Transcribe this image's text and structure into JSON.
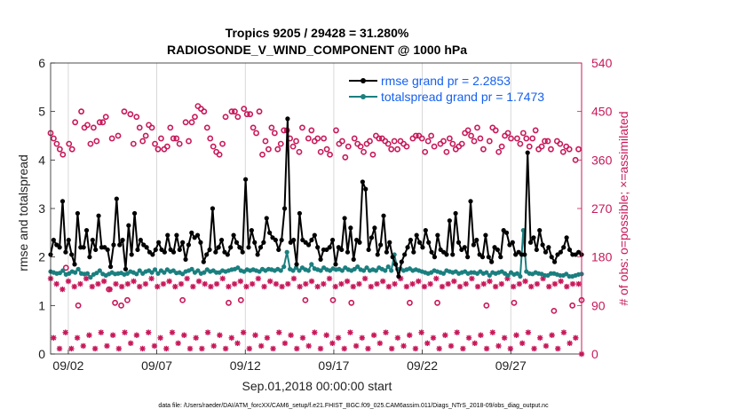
{
  "chart_data": {
    "type": "line",
    "title": "Tropics 9205 / 29428 = 31.280%",
    "subtitle": "RADIOSONDE_V_WIND_COMPONENT @ 1000 hPa",
    "xlabel": "Sep.01,2018 00:00:00 start",
    "ylabel": "rmse and totalspread",
    "ylabel_right": "# of obs: o=possible; ×=assimilated",
    "xlim": [
      0,
      30
    ],
    "ylim": [
      0,
      6
    ],
    "ylim_right": [
      0,
      540
    ],
    "x_ticks": [
      1,
      6,
      11,
      16,
      21,
      26
    ],
    "x_tick_labels": [
      "09/02",
      "09/07",
      "09/12",
      "09/17",
      "09/22",
      "09/27"
    ],
    "y_ticks": [
      "0",
      "1",
      "2",
      "3",
      "4",
      "5",
      "6"
    ],
    "y_ticks_right": [
      "0",
      "90",
      "180",
      "270",
      "360",
      "450",
      "540"
    ],
    "grid": "vertical",
    "legend_position": "top-right",
    "colors": {
      "rmse": "#000000",
      "spread": "#1a7f7f",
      "obs": "#c8185a"
    },
    "footnote": "data file: /Users/raeder/DAI/ATM_forcXX/CAM6_setup/f.e21.FHIST_BGC.f09_025.CAM6assim.011/Diags_NTrS_2018-09/obs_diag_output.nc",
    "series": [
      {
        "name": "rmse",
        "legend": "rmse grand pr = 2.2853",
        "axis": "left",
        "values": [
          2.05,
          2.35,
          2.25,
          2.2,
          3.15,
          2.1,
          2.35,
          2.05,
          1.85,
          2.9,
          2.2,
          2.2,
          2.55,
          2.0,
          2.35,
          2.15,
          2.85,
          2.2,
          2.2,
          2.15,
          1.8,
          2.25,
          3.2,
          2.25,
          2.35,
          1.75,
          2.65,
          2.05,
          2.9,
          2.15,
          2.35,
          2.25,
          2.2,
          2.1,
          2.05,
          2.15,
          2.3,
          2.15,
          2.1,
          2.45,
          2.15,
          2.1,
          2.45,
          2.15,
          2.3,
          1.95,
          2.25,
          2.5,
          2.4,
          2.45,
          2.3,
          1.9,
          2.05,
          2.15,
          3.0,
          2.1,
          2.2,
          2.35,
          2.1,
          2.05,
          2.2,
          2.45,
          2.3,
          2.2,
          2.1,
          3.6,
          2.2,
          2.55,
          2.3,
          2.05,
          2.2,
          2.3,
          2.8,
          2.5,
          2.4,
          2.35,
          2.15,
          2.35,
          3.0,
          4.85,
          2.3,
          2.35,
          1.85,
          2.9,
          2.35,
          2.3,
          2.25,
          2.35,
          2.45,
          2.2,
          1.95,
          2.15,
          2.15,
          2.2,
          2.35,
          1.85,
          2.2,
          2.15,
          2.8,
          2.1,
          2.6,
          1.95,
          2.35,
          2.3,
          3.55,
          3.4,
          2.15,
          2.4,
          2.6,
          2.05,
          2.25,
          2.85,
          2.1,
          2.3,
          2.0,
          1.85,
          1.6,
          1.9,
          2.05,
          2.2,
          2.35,
          2.1,
          2.45,
          2.3,
          2.2,
          2.55,
          2.3,
          2.1,
          2.0,
          2.45,
          2.15,
          2.1,
          2.05,
          2.75,
          2.05,
          2.9,
          2.3,
          2.15,
          2.2,
          2.0,
          3.15,
          2.25,
          2.35,
          2.05,
          2.0,
          2.45,
          2.0,
          1.9,
          2.2,
          2.15,
          2.0,
          2.55,
          2.5,
          2.25,
          2.3,
          2.05,
          2.1,
          2.05,
          2.05,
          4.15,
          2.3,
          2.4,
          2.15,
          2.55,
          2.25,
          2.1,
          2.2,
          2.0,
          1.9,
          2.05,
          2.1,
          2.2,
          2.4,
          2.15,
          2.05,
          2.05,
          2.1,
          2.05
        ]
      },
      {
        "name": "totalspread",
        "legend": "totalspread grand pr = 1.7473",
        "axis": "left",
        "values": [
          1.7,
          1.68,
          1.66,
          1.67,
          1.72,
          1.64,
          1.66,
          1.7,
          1.68,
          1.75,
          1.66,
          1.65,
          1.66,
          1.58,
          1.64,
          1.67,
          1.72,
          1.65,
          1.62,
          1.65,
          1.68,
          1.65,
          1.66,
          1.67,
          1.64,
          1.66,
          1.7,
          1.68,
          1.65,
          1.72,
          1.66,
          1.7,
          1.72,
          1.68,
          1.74,
          1.66,
          1.72,
          1.68,
          1.74,
          1.7,
          1.72,
          1.67,
          1.68,
          1.65,
          1.7,
          1.72,
          1.75,
          1.68,
          1.72,
          1.66,
          1.68,
          1.74,
          1.7,
          1.72,
          1.68,
          1.68,
          1.72,
          1.7,
          1.72,
          1.74,
          1.75,
          1.78,
          1.72,
          1.7,
          1.74,
          1.72,
          1.74,
          1.72,
          1.7,
          1.75,
          1.72,
          1.75,
          1.74,
          1.72,
          1.75,
          1.72,
          1.8,
          2.1,
          1.75,
          1.72,
          1.78,
          1.72,
          1.78,
          1.74,
          1.72,
          1.85,
          1.76,
          1.74,
          1.72,
          1.78,
          1.74,
          1.72,
          1.76,
          1.74,
          1.75,
          1.72,
          1.78,
          1.74,
          1.72,
          1.75,
          1.8,
          1.74,
          1.72,
          1.78,
          1.72,
          1.74,
          1.72,
          1.78,
          1.75,
          1.72,
          1.8,
          1.72,
          2.05,
          1.75,
          1.76,
          1.72,
          1.74,
          1.76,
          1.72,
          1.74,
          1.72,
          1.7,
          1.68,
          1.66,
          1.68,
          1.72,
          1.7,
          1.68,
          1.66,
          1.72,
          1.7,
          1.68,
          1.7,
          1.66,
          1.68,
          1.7,
          1.66,
          1.68,
          1.68,
          1.66,
          1.7,
          1.66,
          1.68,
          1.62,
          1.68,
          1.66,
          1.68,
          1.7,
          1.66,
          1.62,
          1.68,
          1.64,
          1.66,
          1.6,
          2.55,
          1.7,
          1.66,
          1.65,
          1.68,
          1.66,
          1.65,
          1.62,
          1.62,
          1.66,
          1.66,
          1.64,
          1.62,
          1.62,
          1.65,
          1.6,
          1.6,
          1.62,
          1.64,
          1.65
        ]
      },
      {
        "name": "obs_possible",
        "marker": "o",
        "axis": "right",
        "values": [
          410,
          400,
          390,
          380,
          370,
          160,
          390,
          380,
          430,
          90,
          450,
          420,
          425,
          390,
          420,
          395,
          430,
          430,
          440,
          120,
          400,
          95,
          405,
          90,
          450,
          100,
          445,
          390,
          440,
          420,
          395,
          405,
          425,
          420,
          390,
          380,
          400,
          380,
          385,
          420,
          400,
          400,
          390,
          100,
          430,
          395,
          430,
          440,
          460,
          455,
          450,
          420,
          400,
          385,
          375,
          370,
          390,
          440,
          95,
          450,
          450,
          440,
          100,
          455,
          445,
          445,
          420,
          410,
          450,
          370,
          395,
          380,
          420,
          410,
          380,
          390,
          415,
          415,
          400,
          385,
          395,
          375,
          420,
          100,
          400,
          415,
          395,
          400,
          375,
          400,
          380,
          370,
          100,
          415,
          390,
          395,
          365,
          385,
          95,
          400,
          390,
          385,
          375,
          390,
          395,
          370,
          405,
          400,
          400,
          395,
          390,
          380,
          395,
          380,
          395,
          390,
          385,
          95,
          400,
          405,
          405,
          400,
          375,
          395,
          405,
          385,
          95,
          390,
          395,
          375,
          400,
          390,
          380,
          385,
          390,
          410,
          415,
          405,
          395,
          420,
          400,
          380,
          90,
          395,
          420,
          415,
          375,
          385,
          405,
          410,
          400,
          95,
          400,
          390,
          410,
          400,
          385,
          400,
          415,
          380,
          385,
          395,
          395,
          380,
          80,
          395,
          390,
          375,
          385,
          380,
          90,
          360,
          380,
          100
        ]
      },
      {
        "name": "obs_assimilated",
        "marker": "*",
        "axis": "right",
        "values": [
          140,
          30,
          130,
          10,
          120,
          40,
          135,
          10,
          125,
          30,
          130,
          15,
          140,
          35,
          125,
          10,
          130,
          40,
          135,
          15,
          120,
          35,
          130,
          10,
          125,
          40,
          130,
          20,
          135,
          35,
          125,
          10,
          130,
          40,
          140,
          15,
          125,
          30,
          130,
          10,
          135,
          40,
          125,
          20,
          130,
          35,
          140,
          10,
          125,
          30,
          135,
          10,
          130,
          40,
          125,
          15,
          130,
          35,
          140,
          10,
          125,
          30,
          130,
          20,
          135,
          40,
          125,
          10,
          130,
          35,
          140,
          15,
          125,
          30,
          135,
          10,
          130,
          40,
          125,
          20,
          130,
          35,
          140,
          10,
          125,
          30,
          130,
          15,
          135,
          40,
          125,
          10,
          130,
          35,
          140,
          20,
          125,
          30,
          130,
          10,
          135,
          40,
          125,
          15,
          130,
          30,
          140,
          10,
          125,
          35,
          130,
          20,
          135,
          40,
          125,
          10,
          130,
          30,
          140,
          15,
          125,
          35,
          130,
          10,
          135,
          40,
          125,
          20,
          130,
          30,
          140,
          10,
          125,
          35,
          130,
          15,
          135,
          40,
          125,
          10,
          130,
          30,
          140,
          20,
          125,
          35,
          130,
          10,
          135,
          40,
          125,
          15,
          130,
          30,
          140,
          10,
          125,
          35,
          130,
          20,
          135,
          40,
          125,
          10,
          130,
          30,
          140,
          15,
          125,
          35,
          130,
          10,
          135,
          40,
          125,
          20,
          130,
          30,
          130,
          0
        ]
      }
    ]
  }
}
